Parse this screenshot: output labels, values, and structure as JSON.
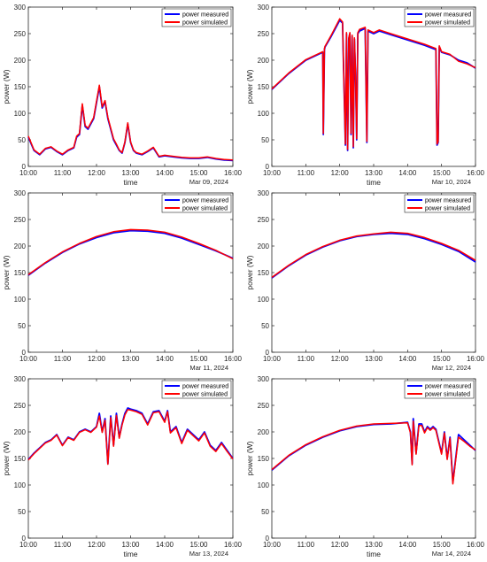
{
  "colors": {
    "measured": "#0000ff",
    "simulated": "#ff0000",
    "axis": "#262626",
    "background": "#ffffff"
  },
  "chart_data": [
    {
      "type": "line",
      "date": "Mar 09, 2024",
      "xlabel": "time",
      "ylabel": "power (W)",
      "ylim": [
        0,
        300
      ],
      "yticks": [
        0,
        50,
        100,
        150,
        200,
        250,
        300
      ],
      "xlim": [
        "10:00",
        "16:00"
      ],
      "xticks": [
        "10:00",
        "11:00",
        "12:00",
        "13:00",
        "14:00",
        "15:00",
        "16:00"
      ],
      "legend": "top-right",
      "grid": false,
      "series": [
        {
          "name": "power measured",
          "x": [
            "10:00",
            "10:10",
            "10:20",
            "10:30",
            "10:40",
            "10:50",
            "11:00",
            "11:10",
            "11:20",
            "11:25",
            "11:30",
            "11:35",
            "11:40",
            "11:45",
            "11:50",
            "11:55",
            "12:00",
            "12:05",
            "12:10",
            "12:15",
            "12:20",
            "12:25",
            "12:30",
            "12:35",
            "12:40",
            "12:45",
            "12:50",
            "12:55",
            "13:00",
            "13:05",
            "13:10",
            "13:20",
            "13:30",
            "13:40",
            "13:50",
            "14:00",
            "14:15",
            "14:30",
            "14:45",
            "15:00",
            "15:15",
            "15:30",
            "15:45",
            "16:00"
          ],
          "values": [
            55,
            30,
            22,
            33,
            36,
            28,
            22,
            30,
            35,
            55,
            60,
            115,
            75,
            70,
            80,
            90,
            120,
            150,
            110,
            122,
            90,
            70,
            50,
            40,
            30,
            25,
            45,
            80,
            45,
            30,
            25,
            22,
            28,
            35,
            18,
            20,
            18,
            16,
            15,
            15,
            17,
            14,
            12,
            11
          ]
        },
        {
          "name": "power simulated",
          "x": [
            "10:00",
            "10:10",
            "10:20",
            "10:30",
            "10:40",
            "10:50",
            "11:00",
            "11:10",
            "11:20",
            "11:25",
            "11:30",
            "11:35",
            "11:40",
            "11:45",
            "11:50",
            "11:55",
            "12:00",
            "12:05",
            "12:10",
            "12:15",
            "12:20",
            "12:25",
            "12:30",
            "12:35",
            "12:40",
            "12:45",
            "12:50",
            "12:55",
            "13:00",
            "13:05",
            "13:10",
            "13:20",
            "13:30",
            "13:40",
            "13:50",
            "14:00",
            "14:15",
            "14:30",
            "14:45",
            "15:00",
            "15:15",
            "15:30",
            "15:45",
            "16:00"
          ],
          "values": [
            57,
            31,
            23,
            34,
            37,
            29,
            23,
            31,
            36,
            57,
            62,
            118,
            77,
            72,
            82,
            92,
            123,
            153,
            112,
            124,
            92,
            72,
            52,
            42,
            31,
            26,
            46,
            82,
            46,
            31,
            26,
            23,
            29,
            36,
            19,
            21,
            19,
            17,
            16,
            16,
            18,
            15,
            13,
            12
          ]
        }
      ]
    },
    {
      "type": "line",
      "date": "Mar 10, 2024",
      "xlabel": "time",
      "ylabel": "power (W)",
      "ylim": [
        0,
        300
      ],
      "yticks": [
        0,
        50,
        100,
        150,
        200,
        250,
        300
      ],
      "xlim": [
        "10:00",
        "16:00"
      ],
      "xticks": [
        "10:00",
        "11:00",
        "12:00",
        "13:00",
        "14:00",
        "15:00",
        "16:00"
      ],
      "legend": "top-right",
      "grid": false,
      "series": [
        {
          "name": "power measured",
          "x": [
            "10:00",
            "10:30",
            "11:00",
            "11:20",
            "11:30",
            "11:31",
            "11:33",
            "11:34",
            "11:45",
            "12:00",
            "12:05",
            "12:10",
            "12:12",
            "12:14",
            "12:16",
            "12:18",
            "12:20",
            "12:22",
            "12:24",
            "12:26",
            "12:28",
            "12:30",
            "12:32",
            "12:35",
            "12:45",
            "12:48",
            "12:50",
            "13:00",
            "13:10",
            "13:30",
            "14:00",
            "14:30",
            "14:50",
            "14:52",
            "14:54",
            "14:56",
            "15:00",
            "15:15",
            "15:30",
            "15:45",
            "16:00"
          ],
          "values": [
            145,
            175,
            200,
            210,
            215,
            60,
            220,
            225,
            245,
            275,
            270,
            40,
            250,
            30,
            240,
            250,
            60,
            245,
            35,
            240,
            170,
            50,
            250,
            255,
            260,
            45,
            255,
            250,
            255,
            248,
            238,
            228,
            220,
            40,
            45,
            225,
            215,
            210,
            200,
            195,
            185
          ]
        },
        {
          "name": "power simulated",
          "x": [
            "10:00",
            "10:30",
            "11:00",
            "11:20",
            "11:30",
            "11:31",
            "11:33",
            "11:34",
            "11:45",
            "12:00",
            "12:05",
            "12:10",
            "12:12",
            "12:14",
            "12:16",
            "12:18",
            "12:20",
            "12:22",
            "12:24",
            "12:26",
            "12:28",
            "12:30",
            "12:32",
            "12:35",
            "12:45",
            "12:48",
            "12:50",
            "13:00",
            "13:10",
            "13:30",
            "14:00",
            "14:30",
            "14:50",
            "14:52",
            "14:54",
            "14:56",
            "15:00",
            "15:15",
            "15:30",
            "15:45",
            "16:00"
          ],
          "values": [
            146,
            176,
            201,
            211,
            216,
            62,
            222,
            226,
            247,
            278,
            272,
            42,
            252,
            32,
            242,
            252,
            62,
            247,
            37,
            242,
            172,
            52,
            252,
            258,
            262,
            47,
            257,
            252,
            257,
            250,
            240,
            230,
            222,
            42,
            47,
            227,
            216,
            211,
            198,
            193,
            186
          ]
        }
      ]
    },
    {
      "type": "line",
      "date": "Mar 11, 2024",
      "xlabel": "",
      "ylabel": "power (W)",
      "ylim": [
        0,
        300
      ],
      "yticks": [
        0,
        50,
        100,
        150,
        200,
        250,
        300
      ],
      "xlim": [
        "10:00",
        "16:00"
      ],
      "xticks": [
        "10:00",
        "11:00",
        "12:00",
        "13:00",
        "14:00",
        "15:00",
        "16:00"
      ],
      "legend": "top-right",
      "grid": false,
      "series": [
        {
          "name": "power measured",
          "x": [
            "10:00",
            "10:30",
            "11:00",
            "11:30",
            "12:00",
            "12:30",
            "13:00",
            "13:30",
            "14:00",
            "14:30",
            "15:00",
            "15:30",
            "16:00"
          ],
          "values": [
            145,
            168,
            188,
            204,
            216,
            225,
            229,
            228,
            224,
            215,
            203,
            191,
            177
          ]
        },
        {
          "name": "power simulated",
          "x": [
            "10:00",
            "10:30",
            "11:00",
            "11:30",
            "12:00",
            "12:30",
            "13:00",
            "13:30",
            "14:00",
            "14:30",
            "15:00",
            "15:30",
            "16:00"
          ],
          "values": [
            146,
            169,
            189,
            205,
            218,
            227,
            231,
            230,
            226,
            217,
            205,
            192,
            176
          ]
        }
      ]
    },
    {
      "type": "line",
      "date": "Mar 12, 2024",
      "xlabel": "",
      "ylabel": "power (W)",
      "ylim": [
        0,
        300
      ],
      "yticks": [
        0,
        50,
        100,
        150,
        200,
        250,
        300
      ],
      "xlim": [
        "10:00",
        "16:00"
      ],
      "xticks": [
        "10:00",
        "11:00",
        "12:00",
        "13:00",
        "14:00",
        "15:00",
        "16:00"
      ],
      "legend": "top-right",
      "grid": false,
      "series": [
        {
          "name": "power measured",
          "x": [
            "10:00",
            "10:30",
            "11:00",
            "11:30",
            "12:00",
            "12:30",
            "13:00",
            "13:30",
            "14:00",
            "14:30",
            "15:00",
            "15:30",
            "16:00"
          ],
          "values": [
            140,
            163,
            183,
            198,
            210,
            218,
            222,
            224,
            222,
            214,
            203,
            190,
            170
          ]
        },
        {
          "name": "power simulated",
          "x": [
            "10:00",
            "10:30",
            "11:00",
            "11:30",
            "12:00",
            "12:30",
            "13:00",
            "13:30",
            "14:00",
            "14:30",
            "15:00",
            "15:30",
            "16:00"
          ],
          "values": [
            141,
            164,
            184,
            199,
            211,
            219,
            223,
            226,
            224,
            216,
            205,
            192,
            173
          ]
        }
      ]
    },
    {
      "type": "line",
      "date": "Mar 13, 2024",
      "xlabel": "time",
      "ylabel": "power (W)",
      "ylim": [
        0,
        300
      ],
      "yticks": [
        0,
        50,
        100,
        150,
        200,
        250,
        300
      ],
      "xlim": [
        "10:00",
        "16:00"
      ],
      "xticks": [
        "10:00",
        "11:00",
        "12:00",
        "13:00",
        "14:00",
        "15:00",
        "16:00"
      ],
      "legend": "top-right",
      "grid": false,
      "series": [
        {
          "name": "power measured",
          "x": [
            "10:00",
            "10:10",
            "10:20",
            "10:30",
            "10:40",
            "10:50",
            "11:00",
            "11:10",
            "11:20",
            "11:30",
            "11:40",
            "11:50",
            "12:00",
            "12:05",
            "12:10",
            "12:15",
            "12:20",
            "12:25",
            "12:30",
            "12:35",
            "12:40",
            "12:45",
            "12:50",
            "12:55",
            "13:00",
            "13:10",
            "13:20",
            "13:30",
            "13:40",
            "13:50",
            "14:00",
            "14:05",
            "14:10",
            "14:20",
            "14:30",
            "14:40",
            "14:50",
            "15:00",
            "15:10",
            "15:20",
            "15:30",
            "15:40",
            "15:50",
            "16:00"
          ],
          "values": [
            148,
            160,
            170,
            180,
            185,
            195,
            175,
            190,
            185,
            200,
            205,
            200,
            210,
            235,
            200,
            225,
            140,
            230,
            175,
            235,
            190,
            215,
            235,
            245,
            243,
            240,
            235,
            215,
            238,
            240,
            220,
            240,
            200,
            210,
            180,
            205,
            195,
            185,
            200,
            175,
            165,
            180,
            165,
            150
          ]
        },
        {
          "name": "power simulated",
          "x": [
            "10:00",
            "10:10",
            "10:20",
            "10:30",
            "10:40",
            "10:50",
            "11:00",
            "11:10",
            "11:20",
            "11:30",
            "11:40",
            "11:50",
            "12:00",
            "12:05",
            "12:10",
            "12:15",
            "12:20",
            "12:25",
            "12:30",
            "12:35",
            "12:40",
            "12:45",
            "12:50",
            "12:55",
            "13:00",
            "13:10",
            "13:20",
            "13:30",
            "13:40",
            "13:50",
            "14:00",
            "14:05",
            "14:10",
            "14:20",
            "14:30",
            "14:40",
            "14:50",
            "15:00",
            "15:10",
            "15:20",
            "15:30",
            "15:40",
            "15:50",
            "16:00"
          ],
          "values": [
            147,
            159,
            169,
            179,
            184,
            194,
            174,
            189,
            184,
            199,
            204,
            199,
            209,
            230,
            199,
            222,
            139,
            227,
            173,
            231,
            188,
            213,
            232,
            242,
            241,
            238,
            233,
            213,
            236,
            238,
            218,
            238,
            198,
            208,
            178,
            203,
            193,
            183,
            198,
            173,
            163,
            178,
            163,
            149
          ]
        }
      ]
    },
    {
      "type": "line",
      "date": "Mar 14, 2024",
      "xlabel": "time",
      "ylabel": "power (W)",
      "ylim": [
        0,
        300
      ],
      "yticks": [
        0,
        50,
        100,
        150,
        200,
        250,
        300
      ],
      "xlim": [
        "10:00",
        "16:00"
      ],
      "xticks": [
        "10:00",
        "11:00",
        "12:00",
        "13:00",
        "14:00",
        "15:00",
        "16:00"
      ],
      "legend": "top-right",
      "grid": false,
      "series": [
        {
          "name": "power measured",
          "x": [
            "10:00",
            "10:30",
            "11:00",
            "11:30",
            "12:00",
            "12:30",
            "13:00",
            "13:30",
            "14:00",
            "14:05",
            "14:08",
            "14:10",
            "14:15",
            "14:20",
            "14:25",
            "14:30",
            "14:35",
            "14:40",
            "14:45",
            "14:50",
            "15:00",
            "15:05",
            "15:10",
            "15:15",
            "15:20",
            "15:25",
            "15:30",
            "15:40",
            "15:50",
            "16:00"
          ],
          "values": [
            128,
            155,
            175,
            190,
            202,
            210,
            214,
            215,
            218,
            200,
            140,
            225,
            160,
            215,
            215,
            200,
            210,
            205,
            210,
            205,
            160,
            200,
            150,
            190,
            105,
            150,
            195,
            185,
            175,
            165
          ]
        },
        {
          "name": "power simulated",
          "x": [
            "10:00",
            "10:30",
            "11:00",
            "11:30",
            "12:00",
            "12:30",
            "13:00",
            "13:30",
            "14:00",
            "14:05",
            "14:08",
            "14:10",
            "14:15",
            "14:20",
            "14:25",
            "14:30",
            "14:35",
            "14:40",
            "14:45",
            "14:50",
            "15:00",
            "15:05",
            "15:10",
            "15:15",
            "15:20",
            "15:25",
            "15:30",
            "15:40",
            "15:50",
            "16:00"
          ],
          "values": [
            129,
            156,
            176,
            191,
            203,
            211,
            215,
            216,
            217,
            198,
            138,
            220,
            158,
            212,
            212,
            198,
            208,
            203,
            208,
            203,
            158,
            198,
            148,
            188,
            102,
            147,
            190,
            182,
            173,
            166
          ]
        }
      ]
    }
  ]
}
